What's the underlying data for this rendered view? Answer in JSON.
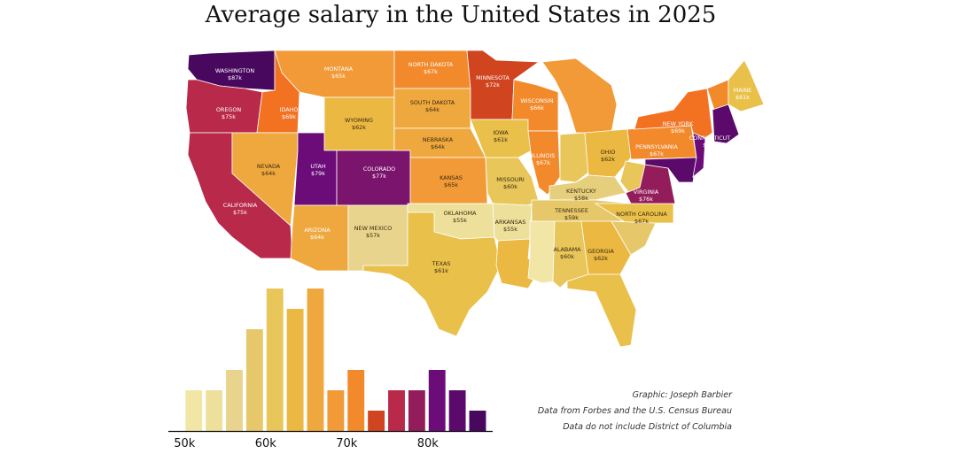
{
  "title": "Average salary in the United States in 2025",
  "credits": {
    "line1": "Graphic: Joseph Barbier",
    "line2": "Data from Forbes and the U.S. Census Bureau",
    "line3": "Data do not include District of Columbia"
  },
  "colors": {
    "c52": "#f2e6a6",
    "c55": "#ede09a",
    "c57": "#e8d48c",
    "c58": "#e6cf7c",
    "c59": "#e6c86a",
    "c60": "#e8c659",
    "c61": "#e9c04a",
    "c62": "#ebb842",
    "c64": "#efa83e",
    "c65": "#f19a37",
    "c67": "#f28a2c",
    "c69": "#f37222",
    "c72": "#d0441f",
    "c75": "#b8294a",
    "c76": "#931d5a",
    "c77": "#7a146c",
    "c79": "#6b0c78",
    "c81": "#5b0a6b",
    "c87": "#47085e"
  },
  "chart_data": {
    "type": "map",
    "title": "Average salary in the United States in 2025",
    "unit": "k",
    "states": [
      {
        "name": "WASHINGTON",
        "value": "$87k"
      },
      {
        "name": "OREGON",
        "value": "$75k"
      },
      {
        "name": "IDAHO",
        "value": "$69k"
      },
      {
        "name": "MONTANA",
        "value": "$65k"
      },
      {
        "name": "NORTH DAKOTA",
        "value": "$67k"
      },
      {
        "name": "MINNESOTA",
        "value": "$72k"
      },
      {
        "name": "WYOMING",
        "value": "$62k"
      },
      {
        "name": "SOUTH DAKOTA",
        "value": "$64k"
      },
      {
        "name": "WISCONSIN",
        "value": "$66k"
      },
      {
        "name": "NEVADA",
        "value": "$64k"
      },
      {
        "name": "UTAH",
        "value": "$79k"
      },
      {
        "name": "COLORADO",
        "value": "$77k"
      },
      {
        "name": "NEBRASKA",
        "value": "$64k"
      },
      {
        "name": "IOWA",
        "value": "$61k"
      },
      {
        "name": "ILLINOIS",
        "value": "$67k"
      },
      {
        "name": "CALIFORNIA",
        "value": "$75k"
      },
      {
        "name": "ARIZONA",
        "value": "$64k"
      },
      {
        "name": "NEW MEXICO",
        "value": "$57k"
      },
      {
        "name": "KANSAS",
        "value": "$65k"
      },
      {
        "name": "MISSOURI",
        "value": "$60k"
      },
      {
        "name": "OKLAHOMA",
        "value": "$55k"
      },
      {
        "name": "ARKANSAS",
        "value": "$55k"
      },
      {
        "name": "TEXAS",
        "value": "$61k"
      },
      {
        "name": "KENTUCKY",
        "value": "$58k"
      },
      {
        "name": "TENNESSEE",
        "value": "$59k"
      },
      {
        "name": "ALABAMA",
        "value": "$60k"
      },
      {
        "name": "GEORGIA",
        "value": "$62k"
      },
      {
        "name": "OHIO",
        "value": "$62k"
      },
      {
        "name": "PENNSYLVANIA",
        "value": "$67k"
      },
      {
        "name": "NEW YORK",
        "value": "$69k"
      },
      {
        "name": "CONNECTICUT",
        "value": "$81k"
      },
      {
        "name": "MAINE",
        "value": "$61k"
      },
      {
        "name": "VIRGINIA",
        "value": "$76k"
      },
      {
        "name": "NORTH CAROLINA",
        "value": "$67k"
      }
    ],
    "histogram": {
      "type": "bar",
      "x_ticks": [
        "50k",
        "60k",
        "70k",
        "80k"
      ],
      "bins_start": [
        50,
        52.5,
        55,
        57.5,
        60,
        62.5,
        65,
        67.5,
        70,
        72.5,
        75,
        77.5,
        80,
        82.5,
        85
      ],
      "bin_width": 2.5,
      "counts": [
        2,
        2,
        3,
        5,
        7,
        6,
        7,
        2,
        3,
        1,
        2,
        2,
        3,
        2,
        1
      ],
      "colors": [
        "#f2e6a6",
        "#ede09a",
        "#e8d48c",
        "#e6c86a",
        "#e8c659",
        "#ebb842",
        "#efa83e",
        "#f19a37",
        "#f28a2c",
        "#d0441f",
        "#b8294a",
        "#931d5a",
        "#6b0c78",
        "#5b0a6b",
        "#47085e"
      ],
      "xlim": [
        48,
        88
      ],
      "ylim": [
        0,
        7
      ]
    }
  }
}
